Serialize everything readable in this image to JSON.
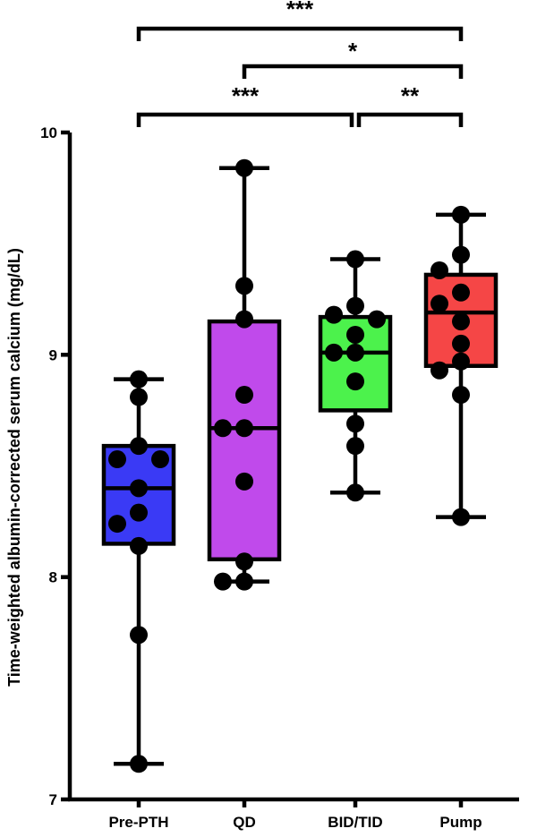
{
  "chart_data": {
    "type": "box",
    "ylabel": "Time-weighted albumin-corrected serum calcium (mg/dL)",
    "ylim": [
      7,
      10
    ],
    "yticks": [
      7,
      8,
      9,
      10
    ],
    "categories": [
      "Pre-PTH",
      "QD",
      "BID/TID",
      "Pump"
    ],
    "colors": [
      "#3a3af5",
      "#c04aeb",
      "#4cf24c",
      "#f54646"
    ],
    "boxes": [
      {
        "group": "Pre-PTH",
        "min": 7.16,
        "q1": 8.15,
        "median": 8.4,
        "q3": 8.59,
        "max": 8.89
      },
      {
        "group": "QD",
        "min": 7.98,
        "q1": 8.08,
        "median": 8.67,
        "q3": 9.15,
        "max": 9.84
      },
      {
        "group": "BID/TID",
        "min": 8.38,
        "q1": 8.75,
        "median": 9.01,
        "q3": 9.17,
        "max": 9.43
      },
      {
        "group": "Pump",
        "min": 8.27,
        "q1": 8.95,
        "median": 9.19,
        "q3": 9.36,
        "max": 9.63
      }
    ],
    "points": [
      [
        8.89,
        8.81,
        8.59,
        8.53,
        8.53,
        8.4,
        8.29,
        8.24,
        8.14,
        7.74,
        7.16
      ],
      [
        9.84,
        9.31,
        9.16,
        8.82,
        8.67,
        8.67,
        8.43,
        8.07,
        7.98,
        7.98
      ],
      [
        9.43,
        9.22,
        9.18,
        9.16,
        9.09,
        9.01,
        9.01,
        8.88,
        8.69,
        8.59,
        8.38
      ],
      [
        9.63,
        9.45,
        9.38,
        9.28,
        9.23,
        9.15,
        9.05,
        8.97,
        8.93,
        8.82,
        8.27
      ]
    ],
    "significance": [
      {
        "from": "Pre-PTH",
        "to": "Pump",
        "label": "***"
      },
      {
        "from": "QD",
        "to": "Pump",
        "label": "*"
      },
      {
        "from": "Pre-PTH",
        "to": "BID/TID",
        "label": "***"
      },
      {
        "from": "BID/TID",
        "to": "Pump",
        "label": "**"
      }
    ]
  }
}
